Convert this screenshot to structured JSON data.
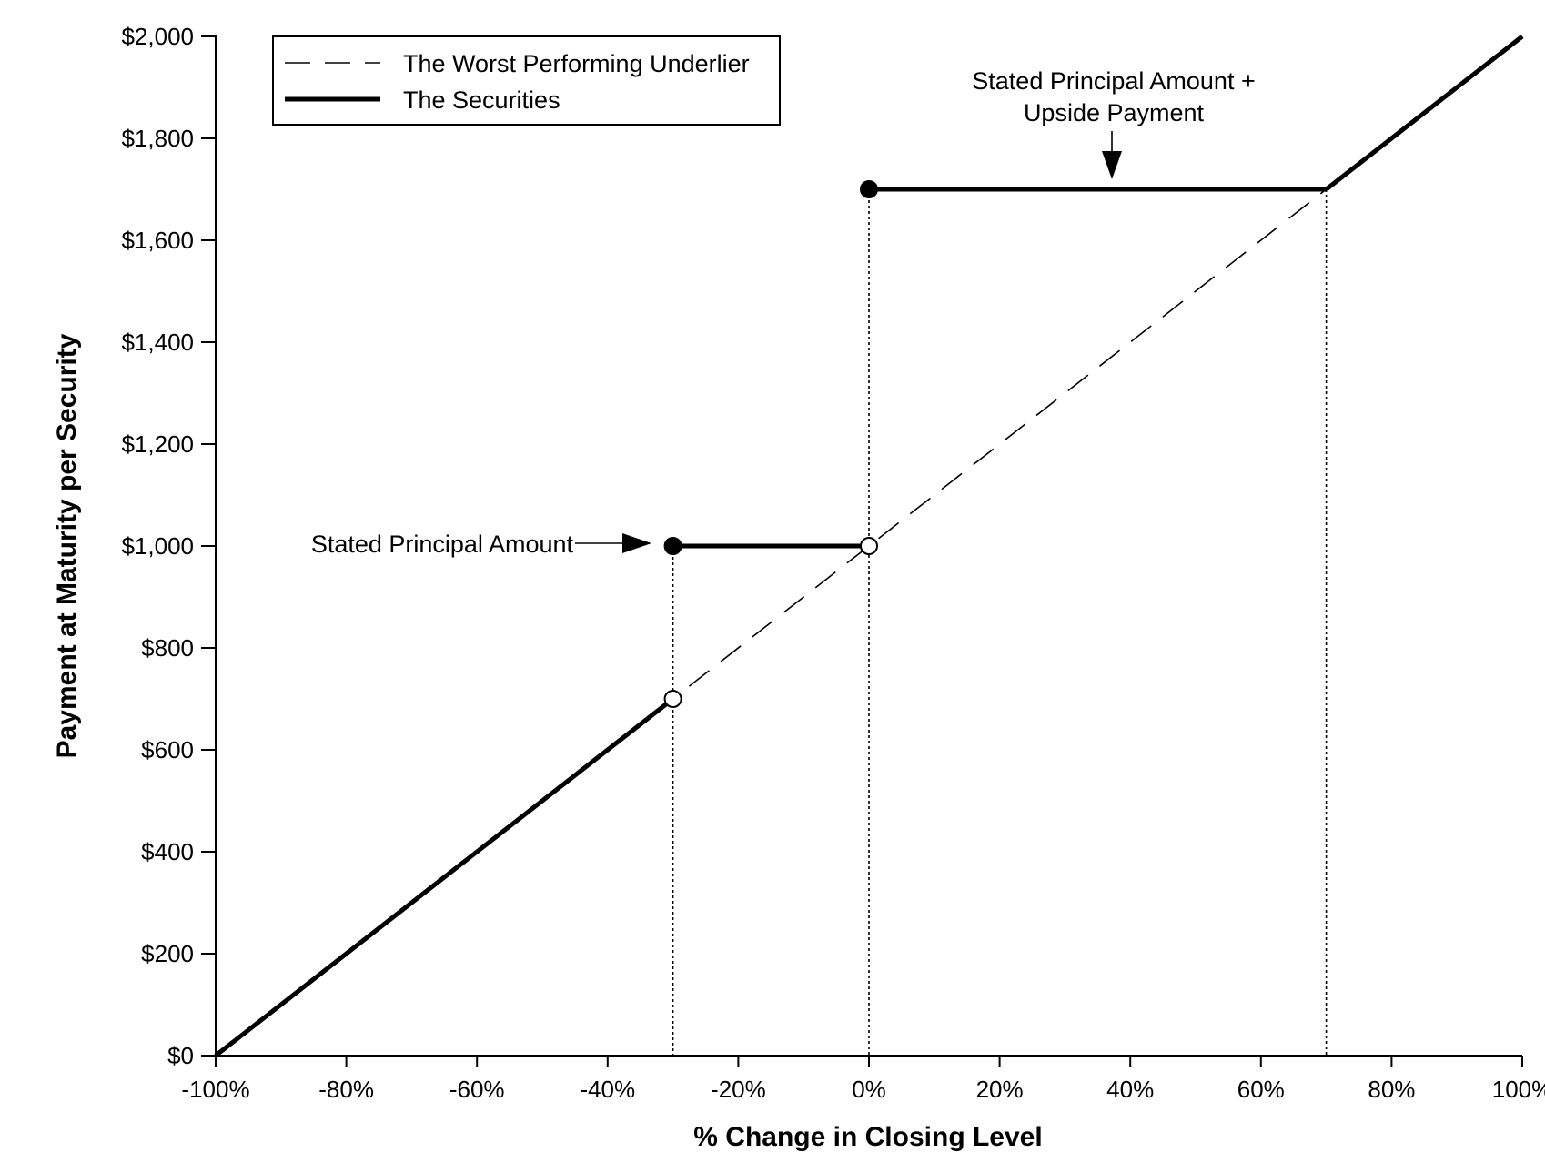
{
  "chart_data": {
    "type": "line",
    "title": "",
    "xlabel": "% Change in Closing Level",
    "ylabel": "Payment at Maturity per Security",
    "xlim": [
      -100,
      100
    ],
    "ylim": [
      0,
      2000
    ],
    "x_ticks": [
      -100,
      -80,
      -60,
      -40,
      -20,
      0,
      20,
      40,
      60,
      80,
      100
    ],
    "x_tick_labels": [
      "-100%",
      "-80%",
      "-60%",
      "-40%",
      "-20%",
      "0%",
      "20%",
      "40%",
      "60%",
      "80%",
      "100%"
    ],
    "y_ticks": [
      0,
      200,
      400,
      600,
      800,
      1000,
      1200,
      1400,
      1600,
      1800,
      2000
    ],
    "y_tick_labels": [
      "$0",
      "$200",
      "$400",
      "$600",
      "$800",
      "$1,000",
      "$1,200",
      "$1,400",
      "$1,600",
      "$1,800",
      "$2,000"
    ],
    "grid": false,
    "legend": {
      "position": "top-left",
      "entries": [
        {
          "name": "The Worst Performing Underlier",
          "style": "dashed"
        },
        {
          "name": "The Securities",
          "style": "solid-thick"
        }
      ]
    },
    "series": [
      {
        "name": "The Worst Performing Underlier",
        "style": "dashed",
        "x": [
          -100,
          100
        ],
        "y": [
          0,
          2000
        ]
      },
      {
        "name": "The Securities",
        "style": "solid-thick",
        "segments": [
          {
            "x": [
              -100,
              -30
            ],
            "y": [
              0,
              700
            ]
          },
          {
            "x": [
              -30,
              0
            ],
            "y": [
              1000,
              1000
            ]
          },
          {
            "x": [
              0,
              70
            ],
            "y": [
              1700,
              1700
            ]
          },
          {
            "x": [
              70,
              100
            ],
            "y": [
              1700,
              2000
            ]
          }
        ]
      }
    ],
    "markers": [
      {
        "x": -30,
        "y": 1000,
        "fill": "filled"
      },
      {
        "x": -30,
        "y": 700,
        "fill": "open"
      },
      {
        "x": 0,
        "y": 1000,
        "fill": "open"
      },
      {
        "x": 0,
        "y": 1700,
        "fill": "filled"
      }
    ],
    "reference_lines": [
      {
        "x": -30,
        "y_top": 1000
      },
      {
        "x": 0,
        "y_top": 1700
      },
      {
        "x": 70,
        "y_top": 1700
      }
    ],
    "annotations": [
      {
        "text": "Stated Principal Amount",
        "points_to": {
          "x": -30,
          "y": 1000
        }
      },
      {
        "lines": [
          "Stated Principal Amount +",
          "Upside Payment"
        ],
        "points_to": {
          "x": 37.5,
          "y": 1700
        }
      }
    ],
    "colors": {
      "line": "#000000",
      "background": "#ffffff"
    }
  }
}
